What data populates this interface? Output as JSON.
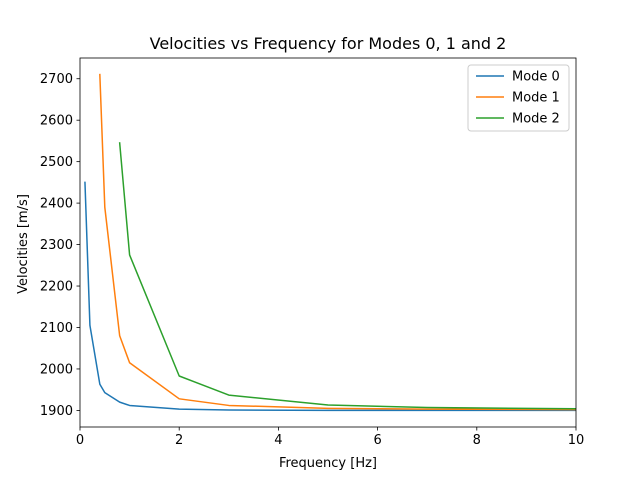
{
  "chart_data": {
    "type": "line",
    "title": "Velocities vs Frequency for Modes 0, 1 and 2",
    "xlabel": "Frequency [Hz]",
    "ylabel": "Velocities [m/s]",
    "xlim": [
      0,
      10
    ],
    "ylim": [
      1860,
      2750
    ],
    "xticks": [
      0,
      2,
      4,
      6,
      8,
      10
    ],
    "yticks": [
      1900,
      2000,
      2100,
      2200,
      2300,
      2400,
      2500,
      2600,
      2700
    ],
    "grid": false,
    "legend_position": "top-right",
    "series": [
      {
        "name": "Mode 0",
        "color": "#1f77b4",
        "x": [
          0.1,
          0.2,
          0.4,
          0.5,
          0.8,
          1,
          2,
          3,
          5,
          7,
          10
        ],
        "y": [
          2450,
          2105,
          1963,
          1943,
          1920,
          1912,
          1903,
          1901,
          1900,
          1900,
          1900
        ]
      },
      {
        "name": "Mode 1",
        "color": "#ff7f0e",
        "x": [
          0.4,
          0.5,
          0.8,
          1,
          2,
          3,
          5,
          7,
          10
        ],
        "y": [
          2710,
          2390,
          2080,
          2015,
          1928,
          1912,
          1905,
          1903,
          1902
        ]
      },
      {
        "name": "Mode 2",
        "color": "#2ca02c",
        "x": [
          0.8,
          1,
          2,
          3,
          5,
          7,
          10
        ],
        "y": [
          2545,
          2275,
          1983,
          1937,
          1913,
          1907,
          1904
        ]
      }
    ]
  }
}
